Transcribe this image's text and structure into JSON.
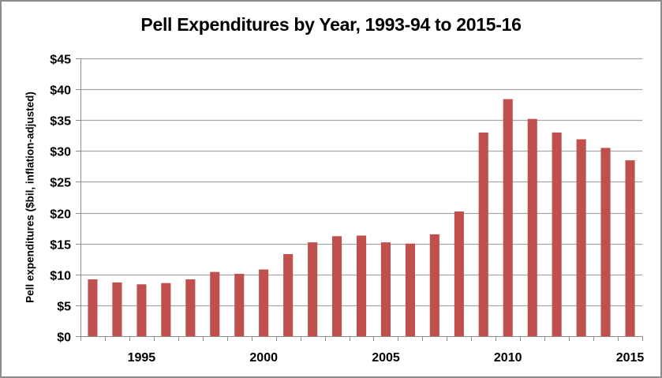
{
  "chart_data": {
    "type": "bar",
    "title": "Pell Expenditures by Year, 1993-94 to 2015-16",
    "xlabel": "",
    "ylabel": "Pell expenditures ($bil, inflation-adjusted)",
    "ylim": [
      0,
      45
    ],
    "yticks": [
      0,
      5,
      10,
      15,
      20,
      25,
      30,
      35,
      40,
      45
    ],
    "ytick_labels": [
      "$0",
      "$5",
      "$10",
      "$15",
      "$20",
      "$25",
      "$30",
      "$35",
      "$40",
      "$45"
    ],
    "categories": [
      1993,
      1994,
      1995,
      1996,
      1997,
      1998,
      1999,
      2000,
      2001,
      2002,
      2003,
      2004,
      2005,
      2006,
      2007,
      2008,
      2009,
      2010,
      2011,
      2012,
      2013,
      2014,
      2015
    ],
    "xtick_labels": [
      "1995",
      "2000",
      "2005",
      "2010",
      "2015"
    ],
    "values": [
      9.2,
      8.7,
      8.4,
      8.6,
      9.2,
      10.4,
      10.1,
      10.8,
      13.3,
      15.2,
      16.2,
      16.3,
      15.2,
      15.0,
      16.5,
      20.2,
      33.0,
      38.4,
      35.2,
      33.0,
      31.9,
      30.5,
      28.5
    ],
    "grid": true,
    "legend": "none",
    "bar_color": "#C0504D",
    "gridline_color": "#A6A6A6"
  }
}
